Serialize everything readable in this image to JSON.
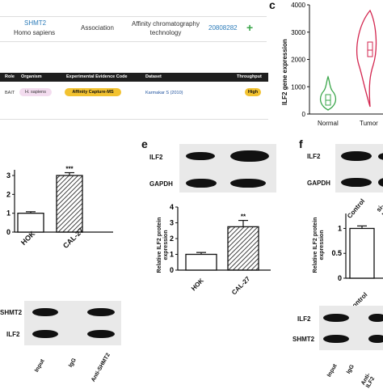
{
  "panel_labels": {
    "c": "c",
    "e": "e",
    "f": "f"
  },
  "biogrid_row": {
    "gene": "SHMT2",
    "organism": "Homo sapiens",
    "type": "Association",
    "method": "Affinity chromatography technology",
    "pubmed_id": "20808282",
    "plus_icon": "plus-icon"
  },
  "evidence_table": {
    "headers": [
      "Role",
      "Organism",
      "Experimental Evidence Code",
      "Dataset",
      "Throughput"
    ],
    "row": [
      "BAIT",
      "H. sapiens",
      "Affinity Capture-MS",
      "Karmakar S (2010)",
      "High"
    ],
    "colors": {
      "header_bg": "#1e1e1e",
      "organism_pill": "#f3dcef",
      "evidence_pill": "#f2c230",
      "throughput_pill": "#f2c230",
      "dataset_text": "#1b4f9c"
    }
  },
  "colors": {
    "normal_violin": "#3aa64a",
    "tumor_violin": "#d3264f",
    "link": "#2b7bb9",
    "plus": "#3aa64a"
  },
  "chart_data": [
    {
      "panel": "c",
      "type": "violin",
      "ylabel": "ILF2 gene expression",
      "yticks": [
        0,
        1000,
        2000,
        3000,
        4000
      ],
      "ylim": [
        0,
        4000
      ],
      "categories": [
        "Normal",
        "Tumor"
      ],
      "series": [
        {
          "name": "Normal",
          "median": 450,
          "q1": 300,
          "q3": 700,
          "min": 100,
          "max": 1350
        },
        {
          "name": "Tumor",
          "median": 2050,
          "q1": 1700,
          "q3": 2500,
          "min": 300,
          "max": 3700
        }
      ]
    },
    {
      "panel": "left",
      "type": "bar",
      "yticks": [
        0,
        1,
        2,
        3
      ],
      "ylim": [
        0,
        3.3
      ],
      "categories": [
        "HOK",
        "CAL-27"
      ],
      "values": [
        1.0,
        3.0
      ],
      "errors": [
        0.08,
        0.15
      ],
      "significance": [
        "",
        "***"
      ]
    },
    {
      "panel": "e",
      "type": "bar",
      "ylabel": "Relative ILF2 protein expression",
      "yticks": [
        0,
        1,
        2,
        3,
        4
      ],
      "ylim": [
        0,
        4
      ],
      "categories": [
        "HOK",
        "CAL-27"
      ],
      "values": [
        1.0,
        2.75
      ],
      "errors": [
        0.12,
        0.4
      ],
      "significance": [
        "",
        "**"
      ]
    },
    {
      "panel": "f",
      "type": "bar",
      "ylabel": "Relative ILF2 protein expression",
      "yticks": [
        0,
        0.5,
        1.0
      ],
      "ylim": [
        0,
        1.3
      ],
      "categories": [
        "Control"
      ],
      "values": [
        1.0
      ],
      "errors": [
        0.05
      ]
    }
  ],
  "blot_e": {
    "rows": [
      "ILF2",
      "GAPDH"
    ],
    "lanes": [
      "HOK",
      "CAL-27"
    ]
  },
  "blot_f": {
    "rows": [
      "ILF2",
      "GAPDH"
    ],
    "lanes": [
      "Control",
      "si-I"
    ]
  },
  "coip_left": {
    "rows": [
      "SHMT2",
      "ILF2"
    ],
    "lanes": [
      "Input",
      "IgG",
      "Anti-SHMT2"
    ]
  },
  "coip_right": {
    "rows": [
      "ILF2",
      "SHMT2"
    ],
    "lanes": [
      "Input",
      "IgG",
      "Anti-ILF2"
    ]
  }
}
